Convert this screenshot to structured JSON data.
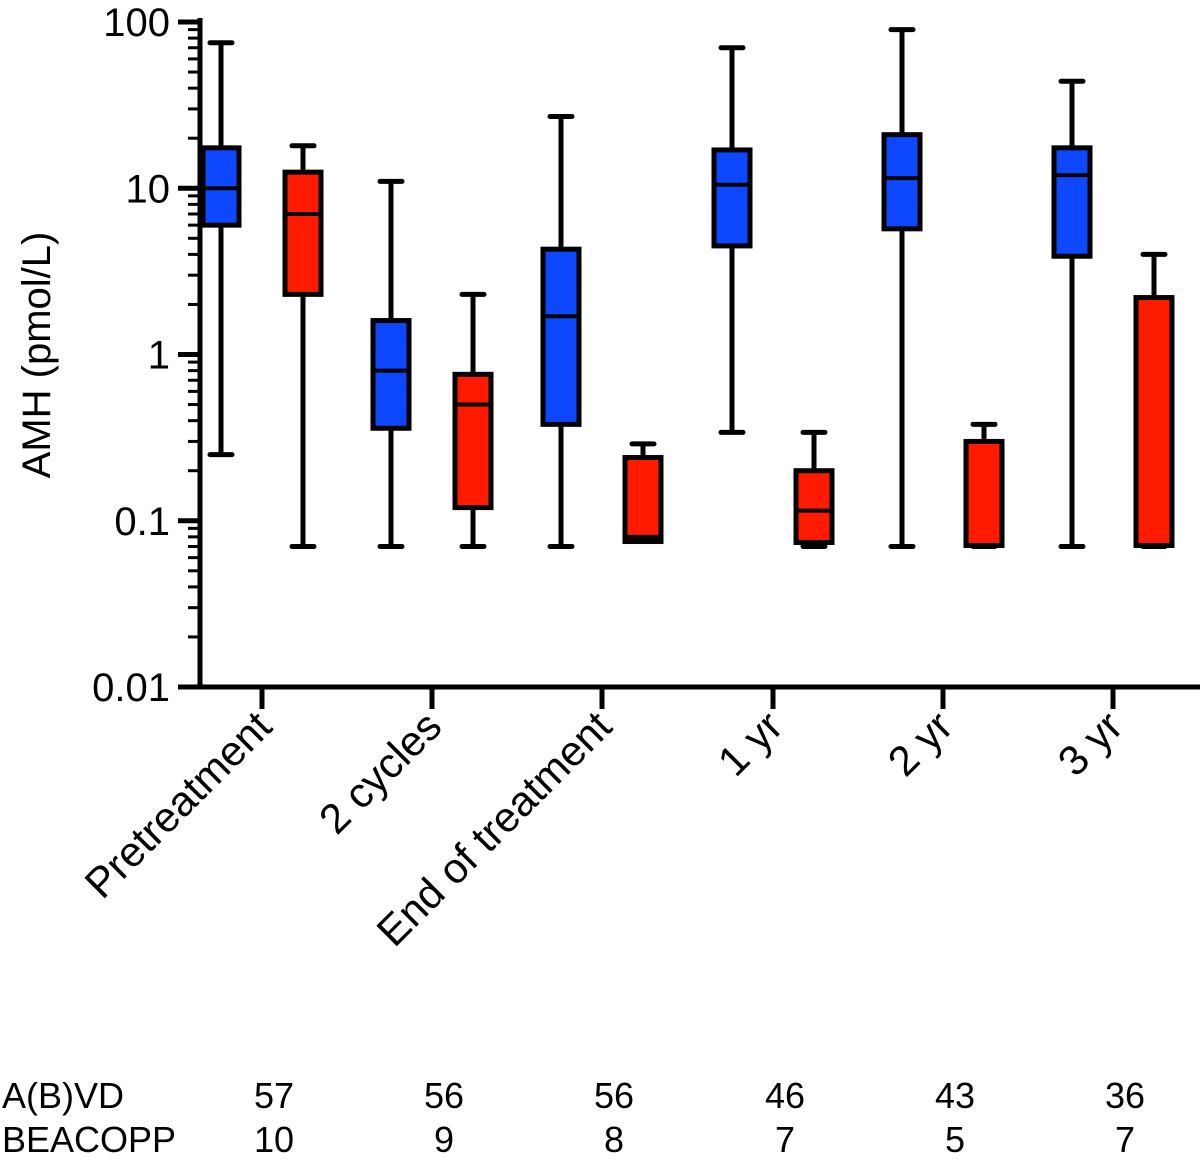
{
  "chart_data": {
    "type": "box",
    "title": "",
    "ylabel": "AMH (pmol/L)",
    "yscale": "log",
    "ylim": [
      0.01,
      100
    ],
    "yticks": [
      100,
      10,
      1,
      0.1,
      0.01
    ],
    "ytick_labels": [
      "100",
      "10",
      "1",
      "0.1",
      "0.01"
    ],
    "categories": [
      "Pretreatment",
      "2 cycles",
      "End of treatment",
      "1 yr",
      "2 yr",
      "3 yr"
    ],
    "colors": {
      "abvd": "#0d47ff",
      "beacopp": "#ff1a00",
      "axis": "#000000"
    },
    "series": [
      {
        "name": "A(B)VD",
        "color": "#0d47ff",
        "boxes": [
          {
            "min": 0.25,
            "q1": 6.0,
            "median": 10.0,
            "q3": 17.5,
            "max": 75
          },
          {
            "min": 0.07,
            "q1": 0.36,
            "median": 0.8,
            "q3": 1.6,
            "max": 11
          },
          {
            "min": 0.07,
            "q1": 0.38,
            "median": 1.7,
            "q3": 4.3,
            "max": 27
          },
          {
            "min": 0.34,
            "q1": 4.5,
            "median": 10.5,
            "q3": 17,
            "max": 70
          },
          {
            "min": 0.07,
            "q1": 5.7,
            "median": 11.5,
            "q3": 21,
            "max": 90
          },
          {
            "min": 0.07,
            "q1": 3.9,
            "median": 12,
            "q3": 17.5,
            "max": 44
          }
        ]
      },
      {
        "name": "BEACOPP",
        "color": "#ff1a00",
        "boxes": [
          {
            "min": 0.07,
            "q1": 2.3,
            "median": 7.0,
            "q3": 12.5,
            "max": 18
          },
          {
            "min": 0.07,
            "q1": 0.12,
            "median": 0.5,
            "q3": 0.76,
            "max": 2.3
          },
          {
            "min": 0.075,
            "q1": 0.075,
            "median": 0.08,
            "q3": 0.24,
            "max": 0.29
          },
          {
            "min": 0.07,
            "q1": 0.074,
            "median": 0.115,
            "q3": 0.2,
            "max": 0.34
          },
          {
            "min": 0.07,
            "q1": 0.071,
            "median": 0.071,
            "q3": 0.3,
            "max": 0.38
          },
          {
            "min": 0.07,
            "q1": 0.071,
            "median": 0.071,
            "q3": 2.2,
            "max": 4.0
          }
        ]
      }
    ],
    "n_table": {
      "rows": [
        {
          "label": "A(B)VD",
          "values": [
            "57",
            "56",
            "56",
            "46",
            "43",
            "36"
          ]
        },
        {
          "label": "BEACOPP",
          "values": [
            "10",
            "9",
            "8",
            "7",
            "5",
            "7"
          ]
        }
      ]
    }
  }
}
